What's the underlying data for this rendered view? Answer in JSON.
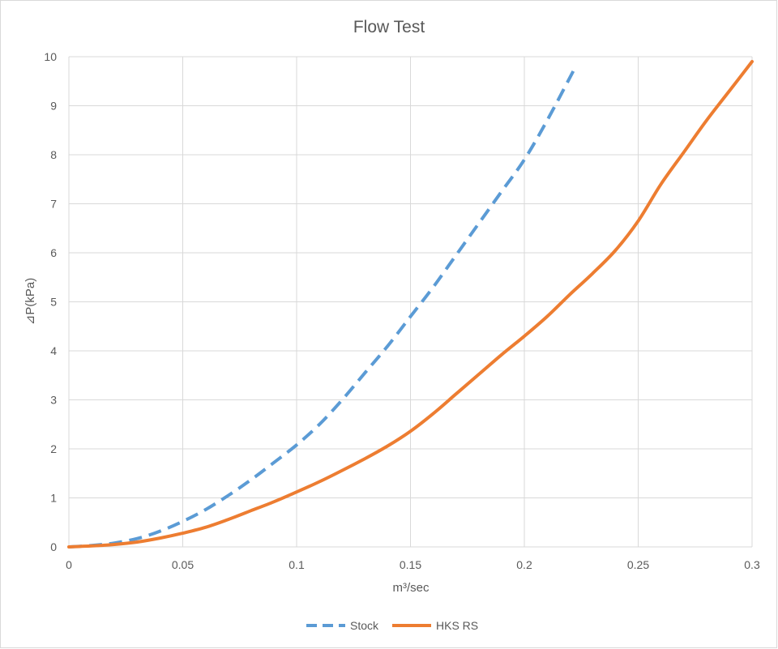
{
  "chart_data": {
    "type": "line",
    "title": "Flow Test",
    "xlabel": "m³/sec",
    "ylabel": "⊿P(kPa)",
    "xlim": [
      0,
      0.3
    ],
    "ylim": [
      0,
      10
    ],
    "x_ticks": [
      "0",
      "0.05",
      "0.1",
      "0.15",
      "0.2",
      "0.25",
      "0.3"
    ],
    "y_ticks": [
      "0",
      "1",
      "2",
      "3",
      "4",
      "5",
      "6",
      "7",
      "8",
      "9",
      "10"
    ],
    "grid": true,
    "legend_position": "bottom",
    "series": [
      {
        "name": "Stock",
        "color": "#5b9bd5",
        "style": "dashed",
        "x": [
          0,
          0.01,
          0.02,
          0.03,
          0.04,
          0.05,
          0.06,
          0.07,
          0.08,
          0.09,
          0.1,
          0.11,
          0.12,
          0.13,
          0.14,
          0.15,
          0.16,
          0.17,
          0.18,
          0.19,
          0.2,
          0.21,
          0.222
        ],
        "y": [
          0,
          0.03,
          0.08,
          0.17,
          0.32,
          0.52,
          0.76,
          1.05,
          1.37,
          1.72,
          2.08,
          2.5,
          3.0,
          3.55,
          4.1,
          4.7,
          5.3,
          5.95,
          6.6,
          7.25,
          7.9,
          8.7,
          9.75
        ]
      },
      {
        "name": "HKS RS",
        "color": "#ed7d31",
        "style": "solid",
        "x": [
          0,
          0.01,
          0.02,
          0.03,
          0.04,
          0.05,
          0.06,
          0.07,
          0.08,
          0.09,
          0.1,
          0.11,
          0.12,
          0.13,
          0.14,
          0.15,
          0.16,
          0.17,
          0.18,
          0.19,
          0.2,
          0.21,
          0.22,
          0.23,
          0.24,
          0.25,
          0.26,
          0.27,
          0.28,
          0.29,
          0.3
        ],
        "y": [
          0,
          0.02,
          0.05,
          0.1,
          0.18,
          0.28,
          0.4,
          0.56,
          0.74,
          0.92,
          1.12,
          1.33,
          1.56,
          1.8,
          2.06,
          2.36,
          2.72,
          3.12,
          3.52,
          3.92,
          4.3,
          4.7,
          5.15,
          5.58,
          6.05,
          6.65,
          7.4,
          8.05,
          8.7,
          9.3,
          9.9
        ]
      }
    ]
  }
}
